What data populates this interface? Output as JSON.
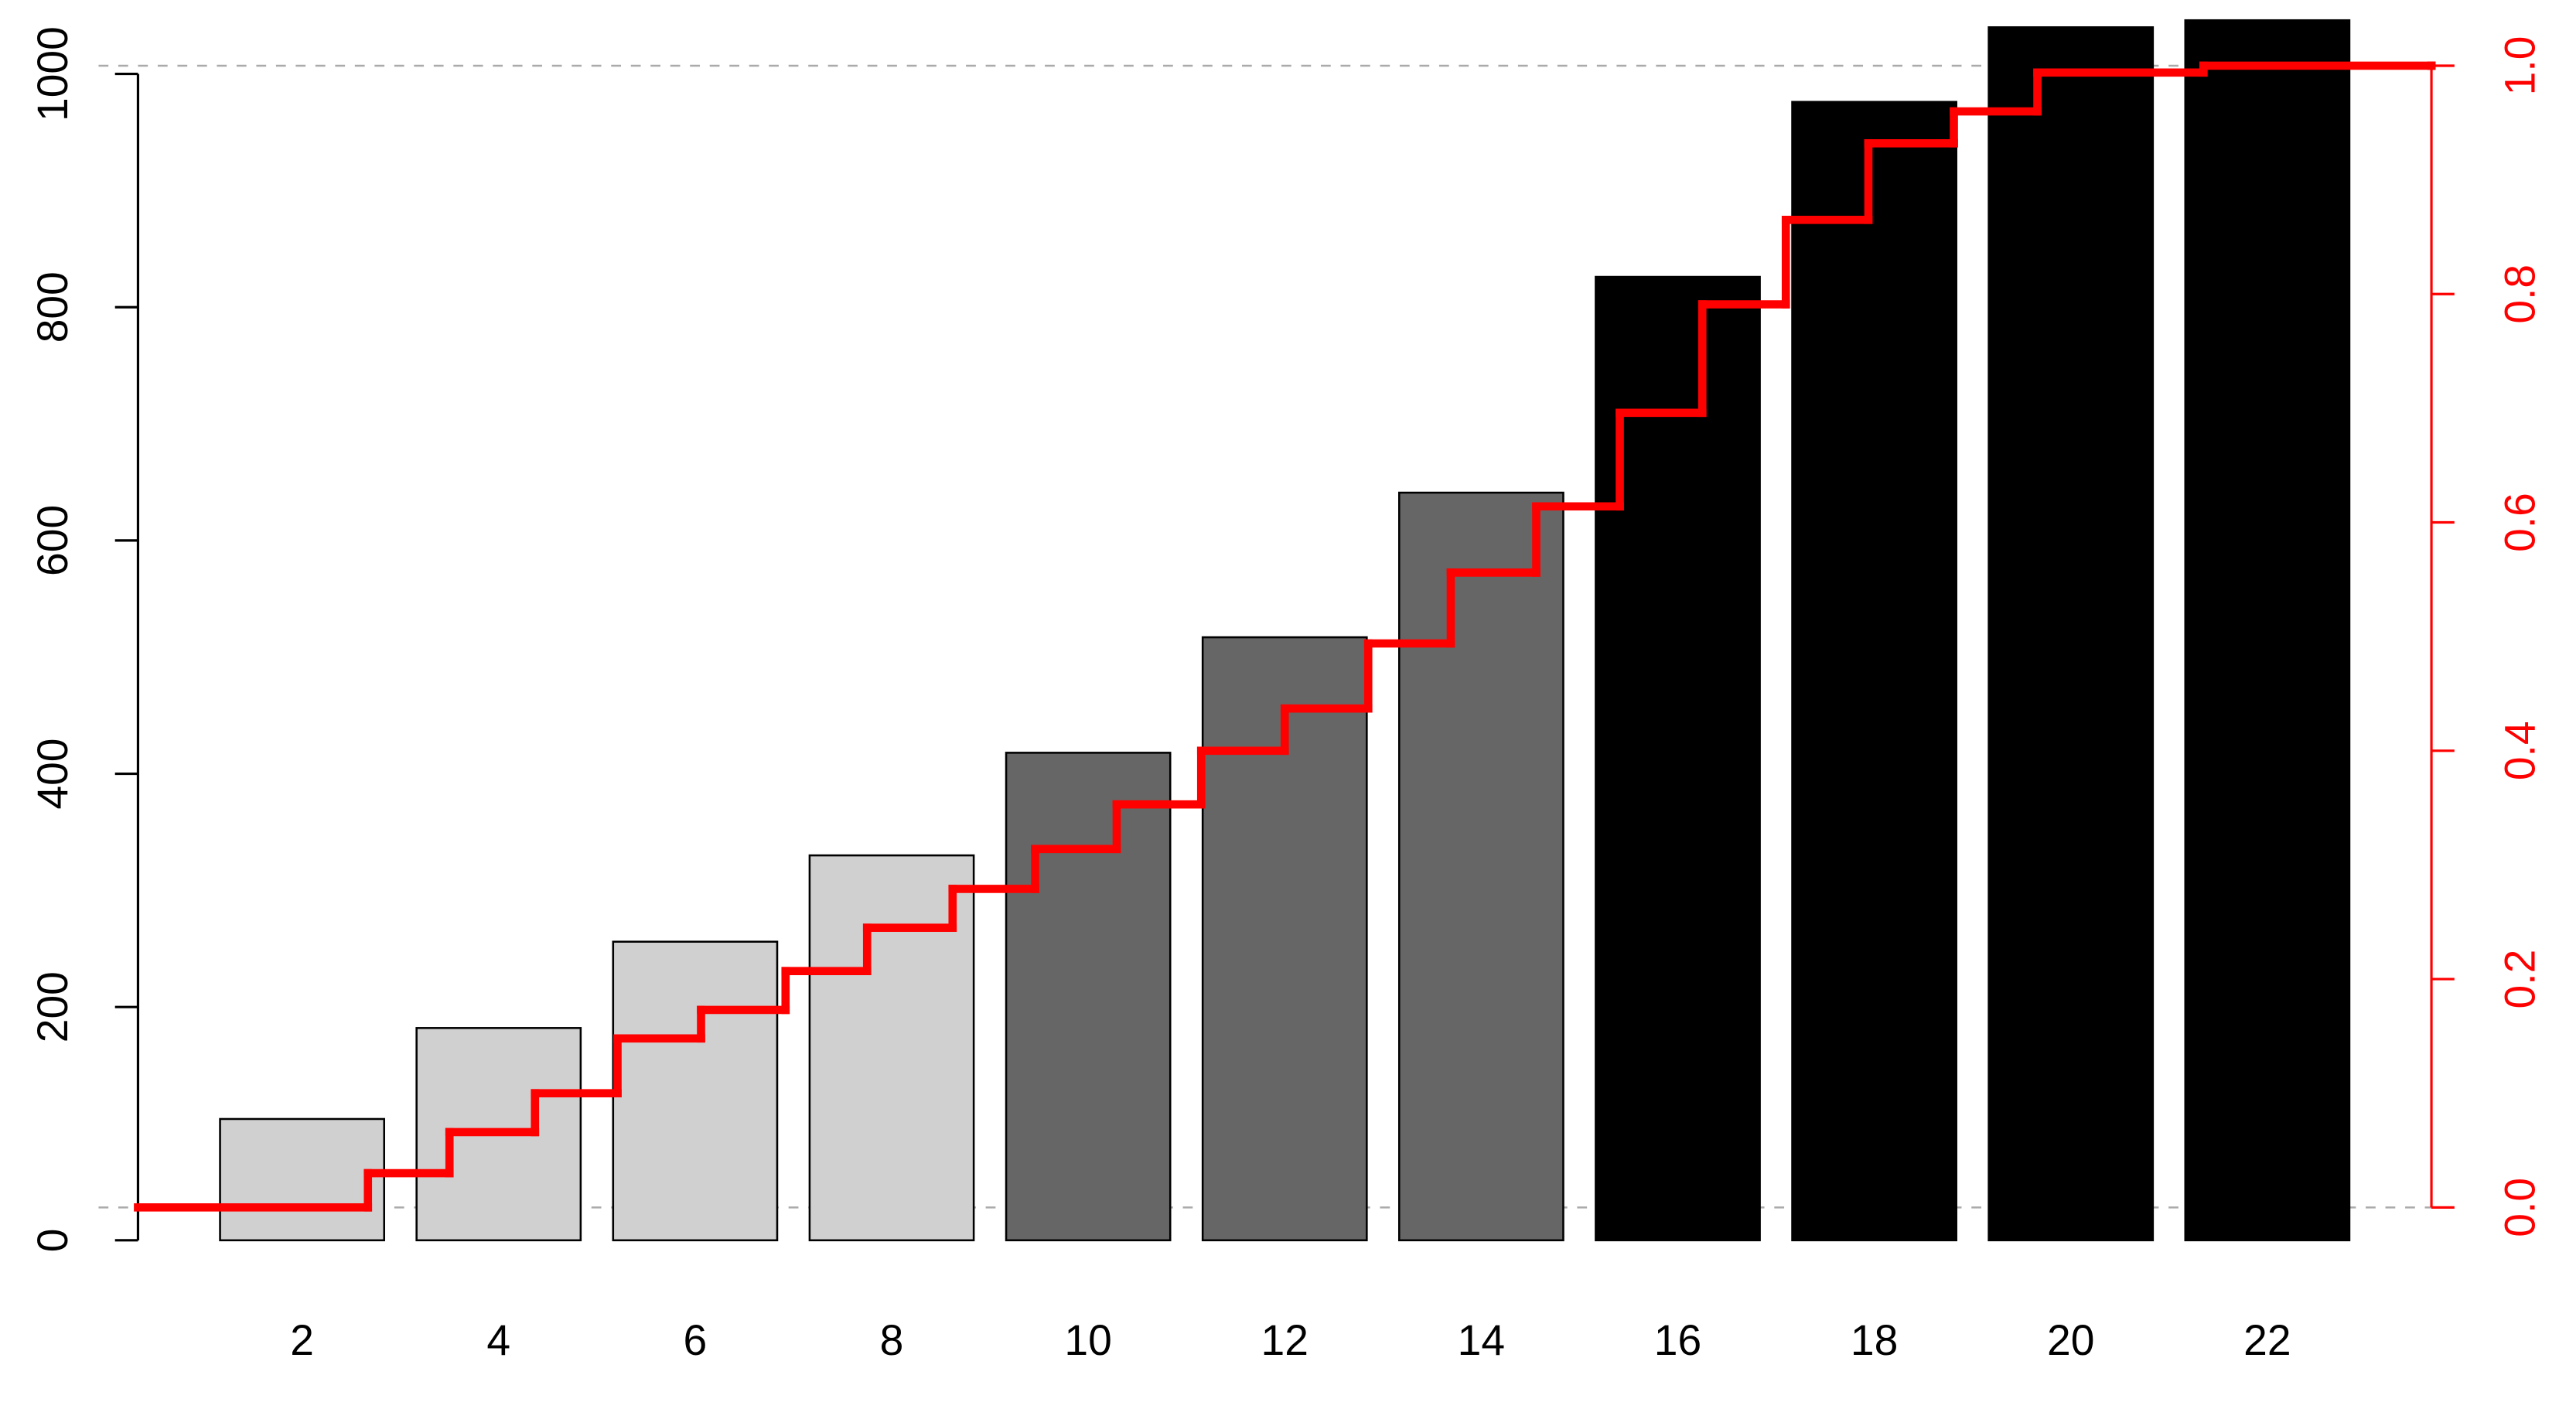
{
  "chart_data": {
    "type": "bar",
    "x": [
      2,
      4,
      6,
      8,
      10,
      12,
      14,
      16,
      18,
      20,
      22
    ],
    "values": [
      104,
      182,
      256,
      330,
      418,
      517,
      641,
      826,
      976,
      1040,
      1046
    ],
    "colors": [
      "#d0d0d0",
      "#d0d0d0",
      "#d0d0d0",
      "#d0d0d0",
      "#666666",
      "#666666",
      "#666666",
      "#000000",
      "#000000",
      "#000000",
      "#000000"
    ],
    "xlim": [
      0.33,
      23.67
    ],
    "xticks": [
      2,
      4,
      6,
      8,
      10,
      12,
      14,
      16,
      18,
      20,
      22
    ],
    "ylim": [
      0,
      1000
    ],
    "yticks": [
      0,
      200,
      400,
      600,
      800,
      1000
    ],
    "y2lim": [
      0,
      1
    ],
    "y2ticks": [
      {
        "value": 0,
        "label": "0.0"
      },
      0.2,
      0.4,
      0.6,
      0.8,
      {
        "value": 1,
        "label": "1.0"
      }
    ],
    "y2_color": "#ff0000",
    "reference_lines_y2": [
      0,
      1
    ],
    "step": {
      "type": "step",
      "axis": "y2",
      "color": "#ff0000",
      "x": [
        0.33,
        2.67,
        3.5,
        4.37,
        5.21,
        6.06,
        6.92,
        7.75,
        8.62,
        9.46,
        10.29,
        11.15,
        12.0,
        12.85,
        13.69,
        14.56,
        15.41,
        16.25,
        17.1,
        17.94,
        18.81,
        19.66,
        21.35,
        23.67
      ],
      "values": [
        0,
        0.03,
        0.066,
        0.1,
        0.148,
        0.173,
        0.207,
        0.245,
        0.279,
        0.314,
        0.353,
        0.4,
        0.437,
        0.494,
        0.556,
        0.614,
        0.696,
        0.791,
        0.865,
        0.932,
        0.96,
        0.994,
        1.0,
        1.0
      ]
    }
  }
}
